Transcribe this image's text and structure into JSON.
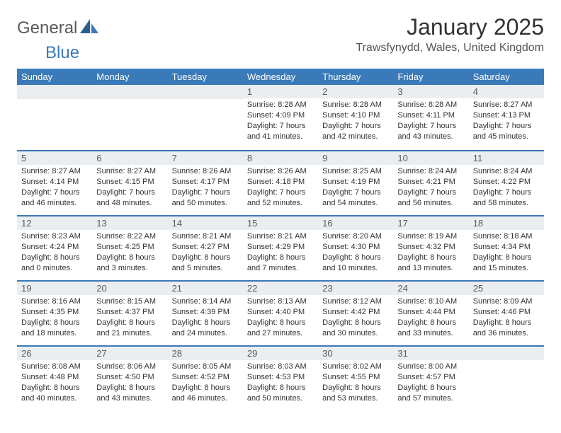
{
  "logo": {
    "general": "General",
    "blue": "Blue"
  },
  "title": "January 2025",
  "location": "Trawsfynydd, Wales, United Kingdom",
  "colors": {
    "header_bg": "#3a7ab8",
    "header_text": "#ffffff",
    "daynum_bg": "#ebeef1",
    "border": "#3a7ab8"
  },
  "daysOfWeek": [
    "Sunday",
    "Monday",
    "Tuesday",
    "Wednesday",
    "Thursday",
    "Friday",
    "Saturday"
  ],
  "weeks": [
    [
      null,
      null,
      null,
      {
        "n": "1",
        "sr": "8:28 AM",
        "ss": "4:09 PM",
        "dh": "7",
        "dm": "41"
      },
      {
        "n": "2",
        "sr": "8:28 AM",
        "ss": "4:10 PM",
        "dh": "7",
        "dm": "42"
      },
      {
        "n": "3",
        "sr": "8:28 AM",
        "ss": "4:11 PM",
        "dh": "7",
        "dm": "43"
      },
      {
        "n": "4",
        "sr": "8:27 AM",
        "ss": "4:13 PM",
        "dh": "7",
        "dm": "45"
      }
    ],
    [
      {
        "n": "5",
        "sr": "8:27 AM",
        "ss": "4:14 PM",
        "dh": "7",
        "dm": "46"
      },
      {
        "n": "6",
        "sr": "8:27 AM",
        "ss": "4:15 PM",
        "dh": "7",
        "dm": "48"
      },
      {
        "n": "7",
        "sr": "8:26 AM",
        "ss": "4:17 PM",
        "dh": "7",
        "dm": "50"
      },
      {
        "n": "8",
        "sr": "8:26 AM",
        "ss": "4:18 PM",
        "dh": "7",
        "dm": "52"
      },
      {
        "n": "9",
        "sr": "8:25 AM",
        "ss": "4:19 PM",
        "dh": "7",
        "dm": "54"
      },
      {
        "n": "10",
        "sr": "8:24 AM",
        "ss": "4:21 PM",
        "dh": "7",
        "dm": "56"
      },
      {
        "n": "11",
        "sr": "8:24 AM",
        "ss": "4:22 PM",
        "dh": "7",
        "dm": "58"
      }
    ],
    [
      {
        "n": "12",
        "sr": "8:23 AM",
        "ss": "4:24 PM",
        "dh": "8",
        "dm": "0"
      },
      {
        "n": "13",
        "sr": "8:22 AM",
        "ss": "4:25 PM",
        "dh": "8",
        "dm": "3"
      },
      {
        "n": "14",
        "sr": "8:21 AM",
        "ss": "4:27 PM",
        "dh": "8",
        "dm": "5"
      },
      {
        "n": "15",
        "sr": "8:21 AM",
        "ss": "4:29 PM",
        "dh": "8",
        "dm": "7"
      },
      {
        "n": "16",
        "sr": "8:20 AM",
        "ss": "4:30 PM",
        "dh": "8",
        "dm": "10"
      },
      {
        "n": "17",
        "sr": "8:19 AM",
        "ss": "4:32 PM",
        "dh": "8",
        "dm": "13"
      },
      {
        "n": "18",
        "sr": "8:18 AM",
        "ss": "4:34 PM",
        "dh": "8",
        "dm": "15"
      }
    ],
    [
      {
        "n": "19",
        "sr": "8:16 AM",
        "ss": "4:35 PM",
        "dh": "8",
        "dm": "18"
      },
      {
        "n": "20",
        "sr": "8:15 AM",
        "ss": "4:37 PM",
        "dh": "8",
        "dm": "21"
      },
      {
        "n": "21",
        "sr": "8:14 AM",
        "ss": "4:39 PM",
        "dh": "8",
        "dm": "24"
      },
      {
        "n": "22",
        "sr": "8:13 AM",
        "ss": "4:40 PM",
        "dh": "8",
        "dm": "27"
      },
      {
        "n": "23",
        "sr": "8:12 AM",
        "ss": "4:42 PM",
        "dh": "8",
        "dm": "30"
      },
      {
        "n": "24",
        "sr": "8:10 AM",
        "ss": "4:44 PM",
        "dh": "8",
        "dm": "33"
      },
      {
        "n": "25",
        "sr": "8:09 AM",
        "ss": "4:46 PM",
        "dh": "8",
        "dm": "36"
      }
    ],
    [
      {
        "n": "26",
        "sr": "8:08 AM",
        "ss": "4:48 PM",
        "dh": "8",
        "dm": "40"
      },
      {
        "n": "27",
        "sr": "8:06 AM",
        "ss": "4:50 PM",
        "dh": "8",
        "dm": "43"
      },
      {
        "n": "28",
        "sr": "8:05 AM",
        "ss": "4:52 PM",
        "dh": "8",
        "dm": "46"
      },
      {
        "n": "29",
        "sr": "8:03 AM",
        "ss": "4:53 PM",
        "dh": "8",
        "dm": "50"
      },
      {
        "n": "30",
        "sr": "8:02 AM",
        "ss": "4:55 PM",
        "dh": "8",
        "dm": "53"
      },
      {
        "n": "31",
        "sr": "8:00 AM",
        "ss": "4:57 PM",
        "dh": "8",
        "dm": "57"
      },
      null
    ]
  ],
  "labels": {
    "sunrise": "Sunrise:",
    "sunset": "Sunset:",
    "daylight": "Daylight:",
    "hours": "hours",
    "and": "and",
    "minutes": "minutes."
  }
}
